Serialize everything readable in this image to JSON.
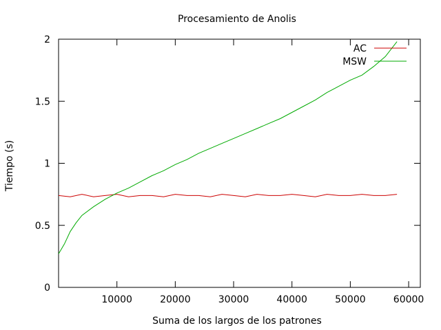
{
  "chart_data": {
    "type": "line",
    "title": "Procesamiento de Anolis",
    "xlabel": "Suma de los largos de los patrones",
    "ylabel": "Tiempo (s)",
    "xlim": [
      0,
      62000
    ],
    "ylim": [
      0,
      2
    ],
    "xticks": [
      10000,
      20000,
      30000,
      40000,
      50000,
      60000
    ],
    "yticks": [
      0,
      0.5,
      1,
      1.5,
      2
    ],
    "xtick_labels": [
      "10000",
      "20000",
      "30000",
      "40000",
      "50000",
      "60000"
    ],
    "ytick_labels": [
      "0",
      "0.5",
      "1",
      "1.5",
      "2"
    ],
    "grid": false,
    "legend_placement": "top-right",
    "series": [
      {
        "name": "AC",
        "color": "#cc0000",
        "x": [
          0,
          2000,
          4000,
          6000,
          8000,
          10000,
          12000,
          14000,
          16000,
          18000,
          20000,
          22000,
          24000,
          26000,
          28000,
          30000,
          32000,
          34000,
          36000,
          38000,
          40000,
          42000,
          44000,
          46000,
          48000,
          50000,
          52000,
          54000,
          56000,
          58000
        ],
        "y": [
          0.74,
          0.73,
          0.75,
          0.73,
          0.74,
          0.75,
          0.73,
          0.74,
          0.74,
          0.73,
          0.75,
          0.74,
          0.74,
          0.73,
          0.75,
          0.74,
          0.73,
          0.75,
          0.74,
          0.74,
          0.75,
          0.74,
          0.73,
          0.75,
          0.74,
          0.74,
          0.75,
          0.74,
          0.74,
          0.75
        ]
      },
      {
        "name": "MSW",
        "color": "#00aa00",
        "x": [
          0,
          1000,
          2000,
          3000,
          4000,
          6000,
          8000,
          10000,
          12000,
          14000,
          16000,
          18000,
          20000,
          22000,
          24000,
          26000,
          28000,
          30000,
          32000,
          34000,
          36000,
          38000,
          40000,
          42000,
          44000,
          46000,
          48000,
          50000,
          52000,
          54000,
          56000,
          58000
        ],
        "y": [
          0.27,
          0.35,
          0.45,
          0.52,
          0.58,
          0.65,
          0.71,
          0.76,
          0.8,
          0.85,
          0.9,
          0.94,
          0.99,
          1.03,
          1.08,
          1.12,
          1.16,
          1.2,
          1.24,
          1.28,
          1.32,
          1.36,
          1.41,
          1.46,
          1.51,
          1.57,
          1.62,
          1.67,
          1.71,
          1.78,
          1.86,
          1.98
        ]
      }
    ]
  }
}
